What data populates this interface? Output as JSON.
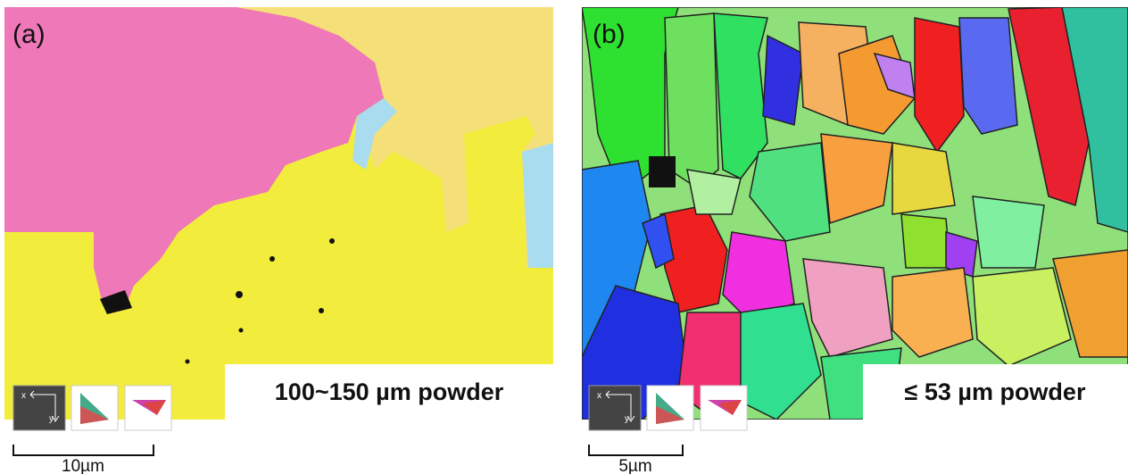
{
  "panels": [
    {
      "label": "(a)",
      "caption": "100~150 µm powder",
      "scale_label": "10µm",
      "axis_x": "x",
      "axis_y": "y"
    },
    {
      "label": "(b)",
      "caption": "≤ 53 µm powder",
      "scale_label": "5µm",
      "axis_x": "x",
      "axis_y": "y"
    }
  ]
}
